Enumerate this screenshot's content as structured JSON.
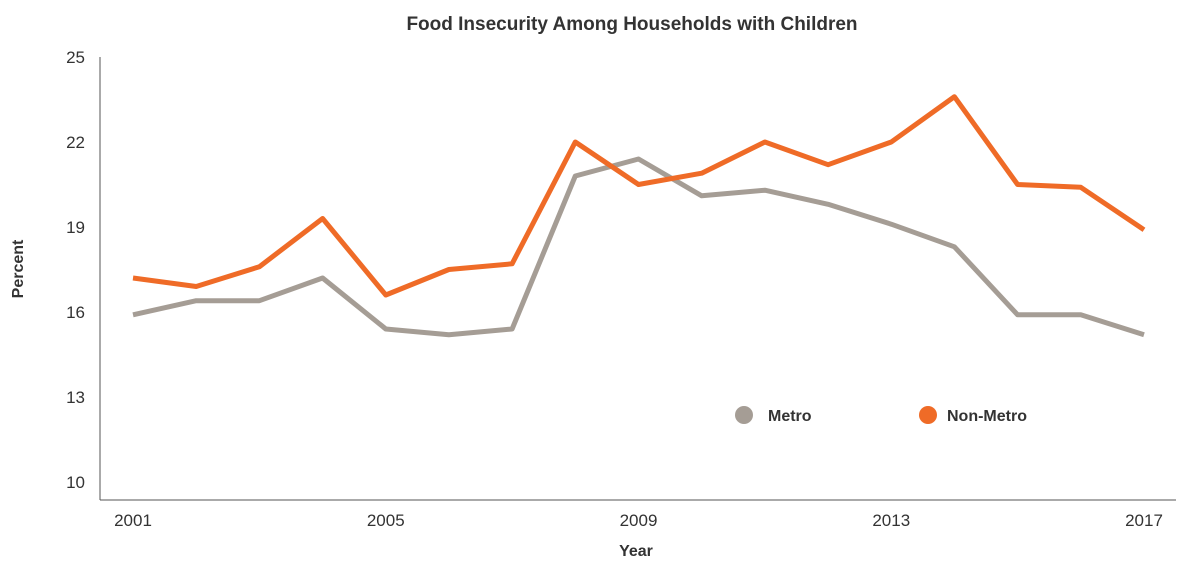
{
  "chart_data": {
    "type": "line",
    "title": "Food Insecurity Among Households with Children",
    "xlabel": "Year",
    "ylabel": "Percent",
    "ylim": [
      10,
      25
    ],
    "yticks": [
      10,
      13,
      16,
      19,
      22,
      25
    ],
    "xlim": [
      2001,
      2017
    ],
    "xticks": [
      2001,
      2005,
      2009,
      2013,
      2017
    ],
    "x": [
      2001,
      2002,
      2003,
      2004,
      2005,
      2006,
      2007,
      2008,
      2009,
      2010,
      2011,
      2012,
      2013,
      2014,
      2015,
      2016,
      2017
    ],
    "series": [
      {
        "name": "Metro",
        "color": "#a59d95",
        "values": [
          15.9,
          16.4,
          16.4,
          17.2,
          15.4,
          15.2,
          15.4,
          20.8,
          21.4,
          20.1,
          20.3,
          19.8,
          19.1,
          18.3,
          15.9,
          15.9,
          15.2
        ]
      },
      {
        "name": "Non-Metro",
        "color": "#ef6b27",
        "values": [
          17.2,
          16.9,
          17.6,
          19.3,
          16.6,
          17.5,
          17.7,
          22.0,
          20.5,
          20.9,
          22.0,
          21.2,
          22.0,
          23.6,
          20.5,
          20.4,
          18.9
        ]
      }
    ],
    "grid": false,
    "legend_position": "bottom-right-inside"
  }
}
